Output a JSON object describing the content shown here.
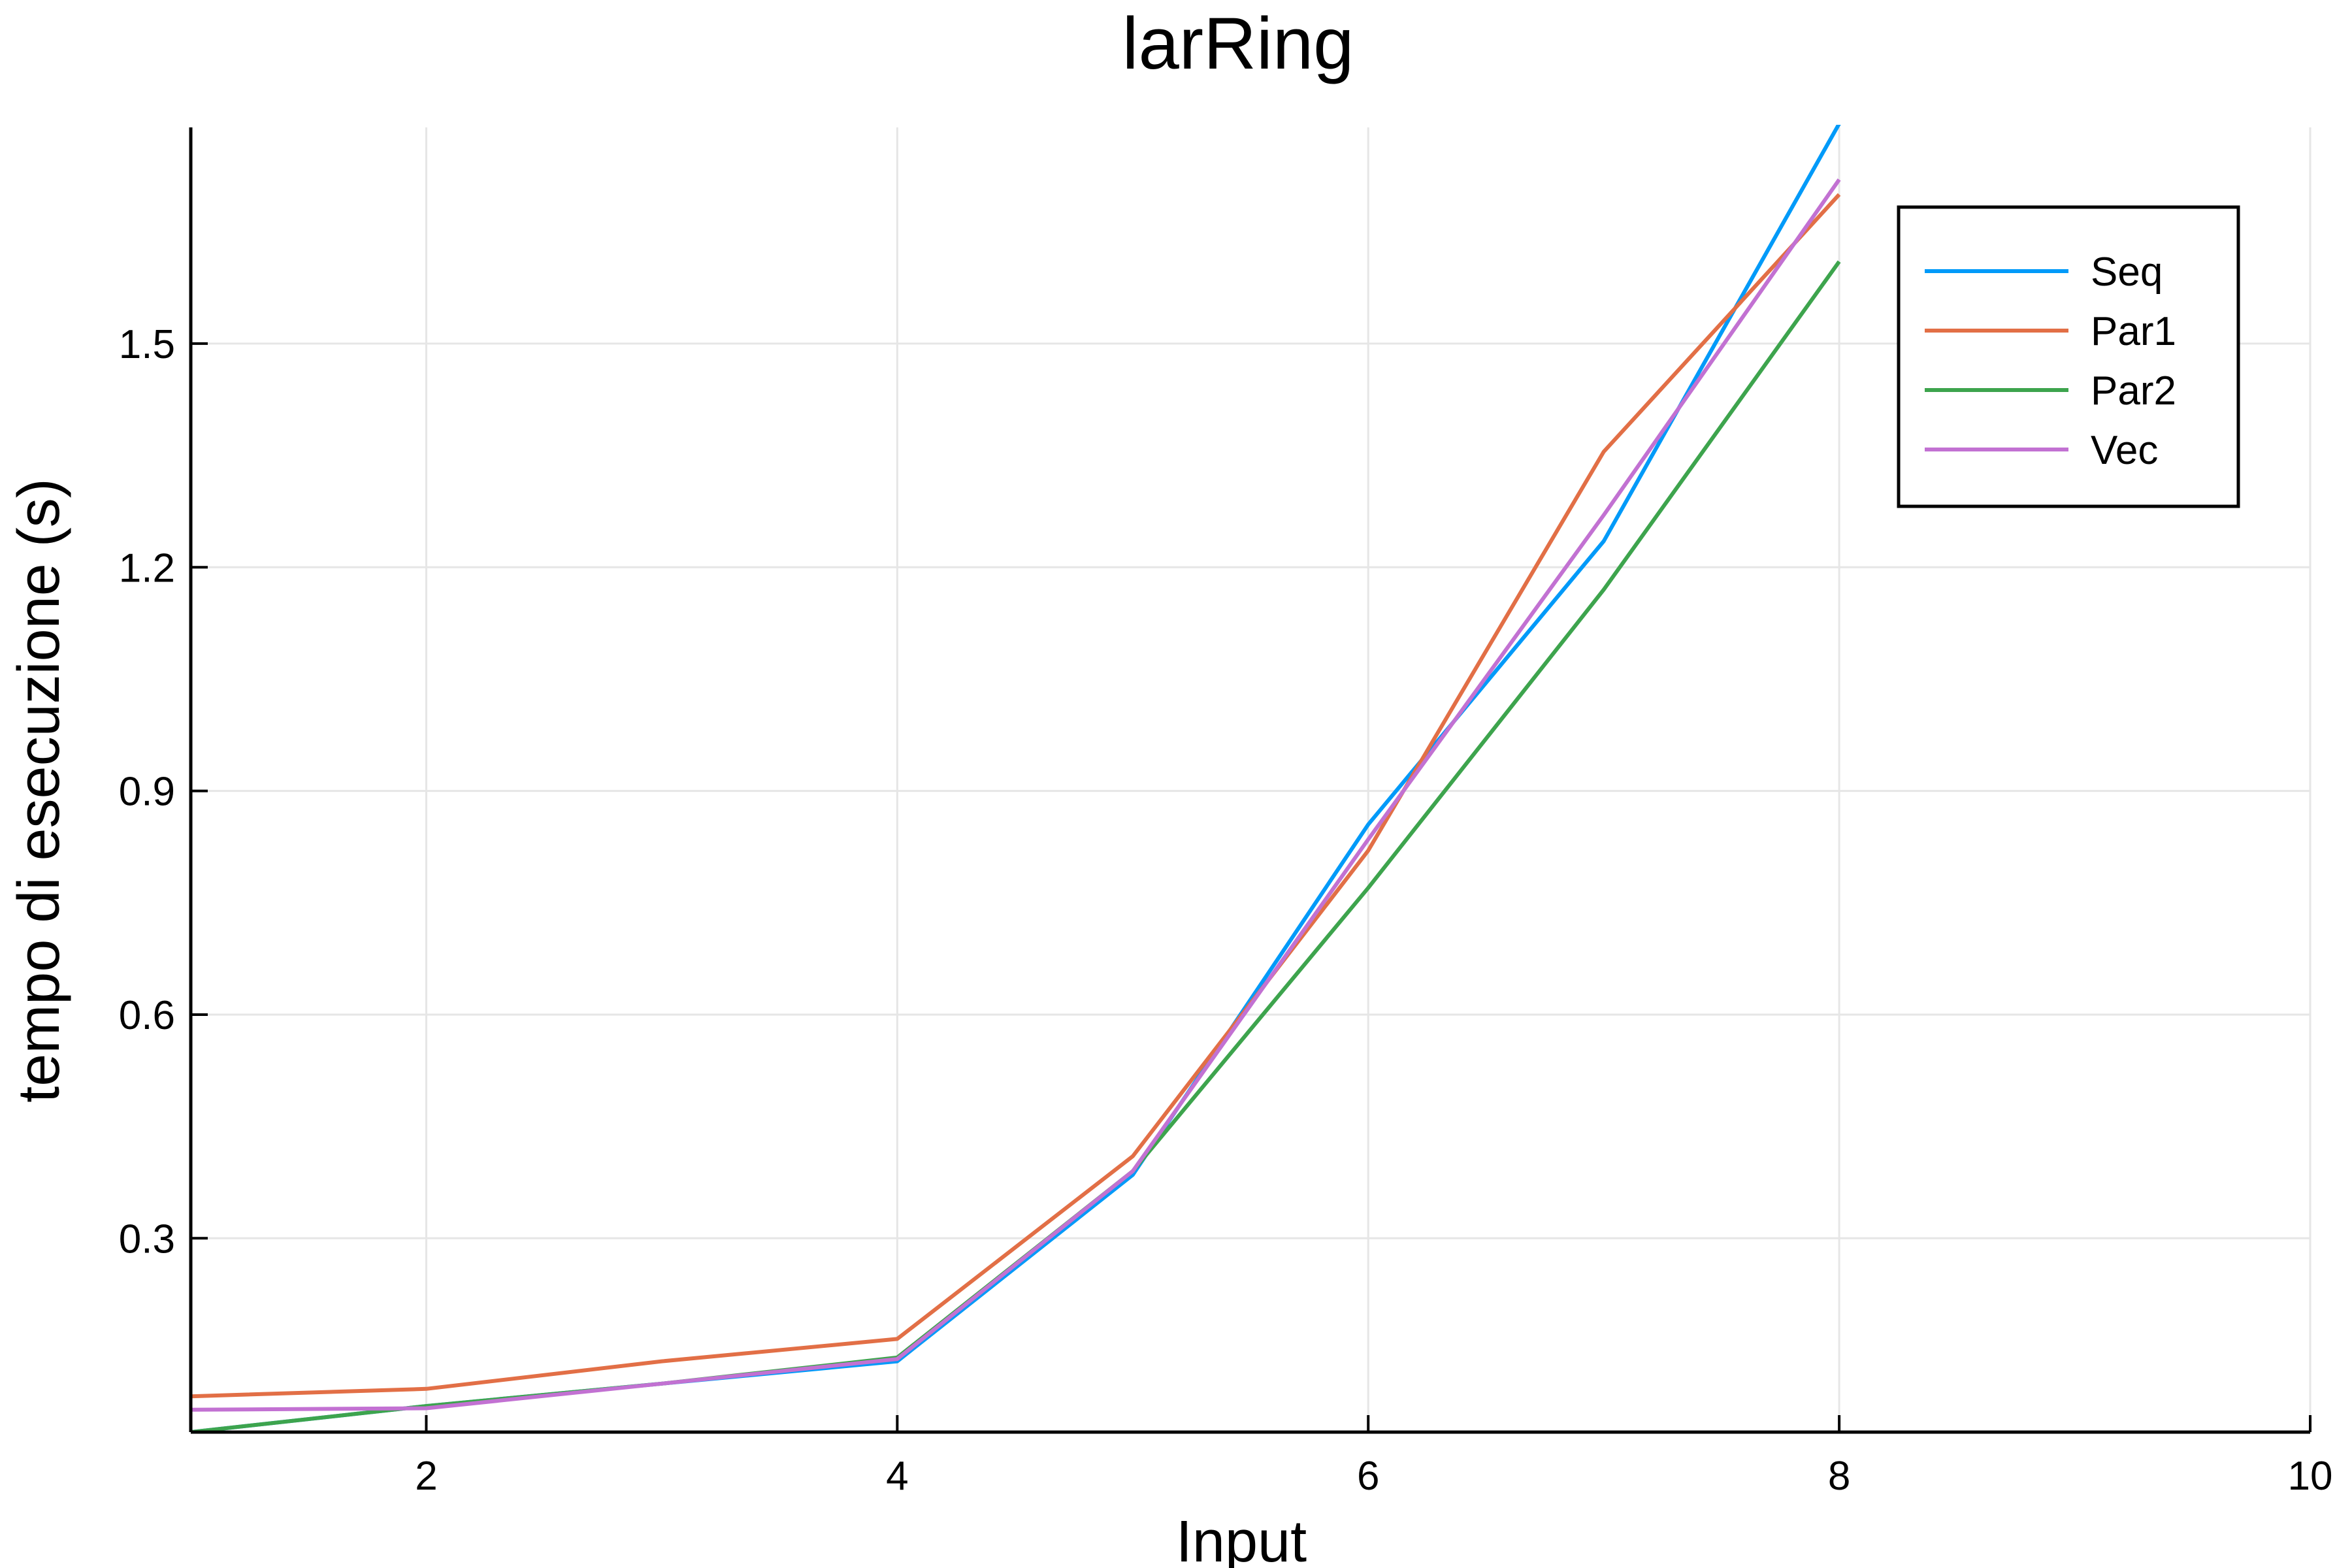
{
  "chart_data": {
    "type": "line",
    "title": "larRing",
    "xlabel": "Input",
    "ylabel": "tempo di esecuzione (s)",
    "xlim": [
      1,
      10
    ],
    "ylim": [
      0.04,
      1.79
    ],
    "xticks": [
      2,
      4,
      6,
      8,
      10
    ],
    "xtick_labels": [
      "2",
      "4",
      "6",
      "8",
      "10"
    ],
    "yticks": [
      0.3,
      0.6,
      0.9,
      1.2,
      1.5
    ],
    "ytick_labels": [
      "0.3",
      "0.6",
      "0.9",
      "1.2",
      "1.5"
    ],
    "grid": true,
    "legend_position": "top-right",
    "series": [
      {
        "name": "Seq",
        "color": "#009af9",
        "x": [
          1,
          2,
          3,
          4,
          5,
          6,
          7,
          8
        ],
        "y": [
          0.04,
          0.075,
          0.105,
          0.135,
          0.385,
          0.855,
          1.235,
          1.795
        ]
      },
      {
        "name": "Par1",
        "color": "#e26f46",
        "x": [
          1,
          2,
          3,
          4,
          5,
          6,
          7,
          8
        ],
        "y": [
          0.088,
          0.098,
          0.135,
          0.165,
          0.41,
          0.82,
          1.355,
          1.7
        ]
      },
      {
        "name": "Par2",
        "color": "#3da44d",
        "x": [
          1,
          2,
          3,
          4,
          5,
          6,
          7,
          8
        ],
        "y": [
          0.04,
          0.075,
          0.105,
          0.14,
          0.39,
          0.77,
          1.17,
          1.61
        ]
      },
      {
        "name": "Vec",
        "color": "#c271d2",
        "x": [
          1,
          2,
          3,
          4,
          5,
          6,
          7,
          8
        ],
        "y": [
          0.07,
          0.072,
          0.105,
          0.138,
          0.39,
          0.835,
          1.27,
          1.72
        ]
      }
    ]
  }
}
